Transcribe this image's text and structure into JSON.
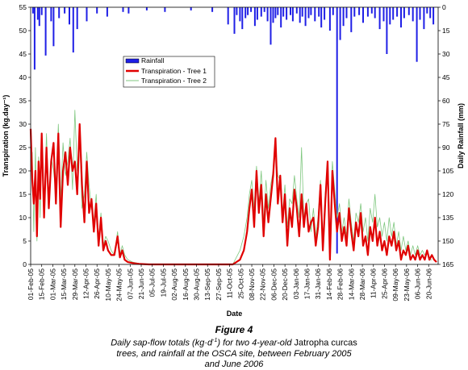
{
  "chart_data": {
    "type": "bar+line",
    "xlabel": "Date",
    "ylabel_left": "Transpiration (kg.day⁻¹)",
    "ylabel_right": "Daily Rainfall (mm)",
    "ylim_left": [
      0,
      55
    ],
    "yticks_left": [
      0,
      5,
      10,
      15,
      20,
      25,
      30,
      35,
      40,
      45,
      50,
      55
    ],
    "ylim_right_inverted": [
      0,
      165
    ],
    "yticks_right": [
      0,
      15,
      30,
      45,
      60,
      75,
      90,
      105,
      120,
      135,
      150,
      165
    ],
    "x_tick_labels": [
      "01-Feb-05",
      "15-Feb-05",
      "01-Mar-05",
      "15-Mar-05",
      "29-Mar-05",
      "12-Apr-05",
      "26-Apr-05",
      "10-May-05",
      "24-May-05",
      "07-Jun-05",
      "21-Jun-05",
      "05-Jul-05",
      "19-Jul-05",
      "02-Aug-05",
      "16-Aug-05",
      "30-Aug-05",
      "13-Sep-05",
      "27-Sep-05",
      "11-Oct-05",
      "25-Oct-05",
      "08-Nov-05",
      "22-Nov-05",
      "06-Dec-05",
      "20-Dec-05",
      "03-Jan-06",
      "17-Jan-06",
      "31-Jan-06",
      "14-Feb-06",
      "28-Feb-06",
      "14-Mar-06",
      "28-Mar-06",
      "11-Apr-06",
      "25-Apr-06",
      "09-May-06",
      "23-May-06",
      "06-Jun-06",
      "20-Jun-06"
    ],
    "legend": {
      "position": "upper-left-center",
      "entries": [
        "Rainfall",
        "Transpiration - Tree 1",
        "Transpiration - Tree 2"
      ]
    },
    "colors": {
      "rainfall": "#1f1fe6",
      "tree1": "#e00000",
      "tree2": "#7fc77f"
    },
    "rainfall": {
      "name": "Rainfall",
      "dates": [
        "2005-02-04",
        "2005-02-06",
        "2005-02-10",
        "2005-02-12",
        "2005-02-15",
        "2005-02-20",
        "2005-02-27",
        "2005-03-02",
        "2005-03-09",
        "2005-03-16",
        "2005-03-22",
        "2005-03-27",
        "2005-04-01",
        "2005-04-13",
        "2005-04-26",
        "2005-05-09",
        "2005-05-29",
        "2005-06-05",
        "2005-06-28",
        "2005-07-21",
        "2005-08-23",
        "2005-09-19",
        "2005-10-09",
        "2005-10-17",
        "2005-10-20",
        "2005-10-24",
        "2005-10-27",
        "2005-10-31",
        "2005-11-03",
        "2005-11-07",
        "2005-11-12",
        "2005-11-15",
        "2005-11-20",
        "2005-11-24",
        "2005-11-28",
        "2005-12-02",
        "2005-12-05",
        "2005-12-08",
        "2005-12-11",
        "2005-12-15",
        "2005-12-18",
        "2005-12-22",
        "2005-12-27",
        "2005-12-30",
        "2006-01-04",
        "2006-01-08",
        "2006-01-11",
        "2006-01-15",
        "2006-01-19",
        "2006-01-22",
        "2006-01-27",
        "2006-02-01",
        "2006-02-04",
        "2006-02-08",
        "2006-02-15",
        "2006-02-19",
        "2006-02-24",
        "2006-02-28",
        "2006-03-04",
        "2006-03-08",
        "2006-03-14",
        "2006-03-18",
        "2006-03-24",
        "2006-03-29",
        "2006-04-04",
        "2006-04-09",
        "2006-04-13",
        "2006-04-19",
        "2006-04-24",
        "2006-04-28",
        "2006-05-02",
        "2006-05-06",
        "2006-05-11",
        "2006-05-16",
        "2006-05-20",
        "2006-05-26",
        "2006-05-31",
        "2006-06-05",
        "2006-06-09",
        "2006-06-14",
        "2006-06-18",
        "2006-06-22",
        "2006-06-26"
      ],
      "values_mm": [
        4,
        40,
        8,
        12,
        5,
        31,
        9,
        25,
        7,
        4,
        11,
        29,
        14,
        9,
        4,
        6,
        3,
        4,
        2,
        3,
        2,
        3,
        11,
        17,
        5,
        9,
        14,
        7,
        5,
        3,
        12,
        8,
        6,
        3,
        9,
        24,
        10,
        7,
        5,
        13,
        6,
        8,
        5,
        9,
        4,
        10,
        6,
        12,
        7,
        5,
        9,
        6,
        13,
        8,
        15,
        5,
        158,
        21,
        12,
        7,
        16,
        6,
        5,
        10,
        6,
        4,
        7,
        14,
        9,
        30,
        11,
        8,
        6,
        13,
        7,
        5,
        9,
        35,
        8,
        14,
        4,
        7,
        11
      ]
    },
    "tree1": {
      "name": "Transpiration - Tree 1",
      "dates": [
        "2005-02-01",
        "2005-02-03",
        "2005-02-05",
        "2005-02-07",
        "2005-02-09",
        "2005-02-11",
        "2005-02-13",
        "2005-02-15",
        "2005-02-18",
        "2005-02-21",
        "2005-02-24",
        "2005-02-27",
        "2005-03-02",
        "2005-03-05",
        "2005-03-08",
        "2005-03-11",
        "2005-03-14",
        "2005-03-17",
        "2005-03-20",
        "2005-03-23",
        "2005-03-26",
        "2005-03-29",
        "2005-04-01",
        "2005-04-04",
        "2005-04-07",
        "2005-04-10",
        "2005-04-13",
        "2005-04-16",
        "2005-04-19",
        "2005-04-22",
        "2005-04-25",
        "2005-04-28",
        "2005-05-01",
        "2005-05-04",
        "2005-05-07",
        "2005-05-10",
        "2005-05-14",
        "2005-05-18",
        "2005-05-22",
        "2005-05-25",
        "2005-05-28",
        "2005-05-31",
        "2005-06-04",
        "2005-06-10",
        "2005-06-18",
        "2005-07-01",
        "2005-08-01",
        "2005-09-01",
        "2005-10-01",
        "2005-10-15",
        "2005-10-24",
        "2005-10-29",
        "2005-11-02",
        "2005-11-05",
        "2005-11-08",
        "2005-11-11",
        "2005-11-14",
        "2005-11-17",
        "2005-11-20",
        "2005-11-23",
        "2005-11-26",
        "2005-11-29",
        "2005-12-02",
        "2005-12-05",
        "2005-12-08",
        "2005-12-11",
        "2005-12-14",
        "2005-12-17",
        "2005-12-20",
        "2005-12-23",
        "2005-12-26",
        "2005-12-29",
        "2006-01-01",
        "2006-01-04",
        "2006-01-07",
        "2006-01-10",
        "2006-01-13",
        "2006-01-16",
        "2006-01-19",
        "2006-01-22",
        "2006-01-25",
        "2006-01-28",
        "2006-01-31",
        "2006-02-03",
        "2006-02-06",
        "2006-02-09",
        "2006-02-12",
        "2006-02-15",
        "2006-02-18",
        "2006-02-21",
        "2006-02-24",
        "2006-02-27",
        "2006-03-02",
        "2006-03-05",
        "2006-03-08",
        "2006-03-11",
        "2006-03-14",
        "2006-03-17",
        "2006-03-20",
        "2006-03-23",
        "2006-03-26",
        "2006-03-29",
        "2006-04-01",
        "2006-04-04",
        "2006-04-07",
        "2006-04-10",
        "2006-04-13",
        "2006-04-16",
        "2006-04-19",
        "2006-04-22",
        "2006-04-25",
        "2006-04-28",
        "2006-05-01",
        "2006-05-04",
        "2006-05-07",
        "2006-05-10",
        "2006-05-13",
        "2006-05-16",
        "2006-05-19",
        "2006-05-22",
        "2006-05-25",
        "2006-05-28",
        "2006-05-31",
        "2006-06-03",
        "2006-06-06",
        "2006-06-09",
        "2006-06-12",
        "2006-06-15",
        "2006-06-18",
        "2006-06-21",
        "2006-06-24",
        "2006-06-27",
        "2006-06-30"
      ],
      "values_kg_per_day": [
        29,
        18,
        13,
        20,
        6,
        22,
        14,
        28,
        10,
        25,
        12,
        22,
        26,
        13,
        28,
        8,
        20,
        24,
        17,
        25,
        20,
        22,
        15,
        30,
        17,
        9,
        22,
        11,
        14,
        7,
        13,
        4,
        10,
        3,
        5,
        3,
        2,
        2,
        6,
        1.5,
        3,
        1,
        0.5,
        0.3,
        0.1,
        0,
        0,
        0,
        0,
        0,
        1,
        3,
        7,
        12,
        16,
        8,
        20,
        11,
        17,
        6,
        15,
        9,
        14,
        19,
        27,
        13,
        19,
        9,
        15,
        4,
        12,
        8,
        16,
        12,
        6,
        15,
        8,
        13,
        7,
        9,
        10,
        4,
        8,
        17,
        3,
        13,
        22,
        1,
        20,
        13,
        7,
        11,
        5,
        8,
        4,
        12,
        7,
        3,
        9,
        6,
        11,
        4,
        6,
        2,
        8,
        5,
        10,
        4,
        7,
        3,
        5,
        2,
        6,
        4,
        7,
        3,
        5,
        1,
        3,
        2,
        4,
        1,
        2,
        1,
        3,
        1,
        2,
        1,
        3,
        1,
        2,
        1,
        0.5
      ]
    },
    "tree2": {
      "name": "Transpiration - Tree 2",
      "dates": [
        "2005-02-01",
        "2005-02-03",
        "2005-02-05",
        "2005-02-07",
        "2005-02-09",
        "2005-02-11",
        "2005-02-13",
        "2005-02-15",
        "2005-02-18",
        "2005-02-21",
        "2005-02-24",
        "2005-02-27",
        "2005-03-02",
        "2005-03-05",
        "2005-03-08",
        "2005-03-11",
        "2005-03-14",
        "2005-03-17",
        "2005-03-20",
        "2005-03-23",
        "2005-03-26",
        "2005-03-29",
        "2005-04-01",
        "2005-04-04",
        "2005-04-07",
        "2005-04-10",
        "2005-04-13",
        "2005-04-16",
        "2005-04-19",
        "2005-04-22",
        "2005-04-25",
        "2005-04-28",
        "2005-05-01",
        "2005-05-04",
        "2005-05-07",
        "2005-05-10",
        "2005-05-14",
        "2005-05-18",
        "2005-05-22",
        "2005-05-25",
        "2005-05-28",
        "2005-05-31",
        "2005-06-04",
        "2005-06-10",
        "2005-06-18",
        "2005-07-01",
        "2005-08-01",
        "2005-09-01",
        "2005-10-01",
        "2005-10-15",
        "2005-10-24",
        "2005-10-29",
        "2005-11-02",
        "2005-11-05",
        "2005-11-08",
        "2005-11-11",
        "2005-11-14",
        "2005-11-17",
        "2005-11-20",
        "2005-11-23",
        "2005-11-26",
        "2005-11-29",
        "2005-12-02",
        "2005-12-05",
        "2005-12-08",
        "2005-12-11",
        "2005-12-14",
        "2005-12-17",
        "2005-12-20",
        "2005-12-23",
        "2005-12-26",
        "2005-12-29",
        "2006-01-01",
        "2006-01-04",
        "2006-01-07",
        "2006-01-10",
        "2006-01-13",
        "2006-01-16",
        "2006-01-19",
        "2006-01-22",
        "2006-01-25",
        "2006-01-28",
        "2006-01-31",
        "2006-02-03",
        "2006-02-06",
        "2006-02-09",
        "2006-02-12",
        "2006-02-15",
        "2006-02-18",
        "2006-02-21",
        "2006-02-24",
        "2006-02-27",
        "2006-03-02",
        "2006-03-05",
        "2006-03-08",
        "2006-03-11",
        "2006-03-14",
        "2006-03-17",
        "2006-03-20",
        "2006-03-23",
        "2006-03-26",
        "2006-03-29",
        "2006-04-01",
        "2006-04-04",
        "2006-04-07",
        "2006-04-10",
        "2006-04-13",
        "2006-04-16",
        "2006-04-19",
        "2006-04-22",
        "2006-04-25",
        "2006-04-28",
        "2006-05-01",
        "2006-05-04",
        "2006-05-07",
        "2006-05-10",
        "2006-05-13",
        "2006-05-16",
        "2006-05-19",
        "2006-05-22",
        "2006-05-25",
        "2006-05-28",
        "2006-05-31",
        "2006-06-03",
        "2006-06-06",
        "2006-06-09",
        "2006-06-12",
        "2006-06-15",
        "2006-06-18",
        "2006-06-21",
        "2006-06-24",
        "2006-06-27",
        "2006-06-30"
      ],
      "values_kg_per_day": [
        22,
        24,
        7,
        25,
        5,
        23,
        10,
        27,
        11,
        28,
        13,
        23,
        20,
        15,
        30,
        14,
        26,
        19,
        22,
        27,
        16,
        33,
        20,
        28,
        12,
        15,
        24,
        17,
        12,
        9,
        15,
        5,
        11,
        4,
        6,
        5,
        3,
        2,
        7,
        2,
        4,
        2,
        1,
        0.5,
        0.2,
        0,
        0,
        0,
        0,
        0,
        3,
        6,
        10,
        15,
        18,
        12,
        21,
        13,
        20,
        9,
        18,
        12,
        17,
        20,
        24,
        19,
        18,
        11,
        17,
        8,
        14,
        13,
        19,
        14,
        10,
        25,
        10,
        13,
        14,
        7,
        12,
        6,
        10,
        18,
        5,
        15,
        20,
        4,
        22,
        16,
        10,
        13,
        7,
        10,
        6,
        14,
        9,
        5,
        11,
        9,
        13,
        7,
        10,
        5,
        12,
        9,
        15,
        8,
        10,
        6,
        9,
        5,
        10,
        6,
        9,
        4,
        7,
        3,
        6,
        3,
        5,
        2,
        4,
        2,
        4,
        2,
        3,
        2,
        3,
        1,
        1
      ]
    }
  },
  "caption": {
    "figure_label": "Figure 4",
    "line1_a": "Daily sap-flow totals (kg·d",
    "line1_sup": "-1",
    "line1_b": ") for two 4-year-old ",
    "line1_c": "Jatropha curcas",
    "line2": "trees, and rainfall at the OSCA site, between February 2005",
    "line3": "and June 2006"
  }
}
